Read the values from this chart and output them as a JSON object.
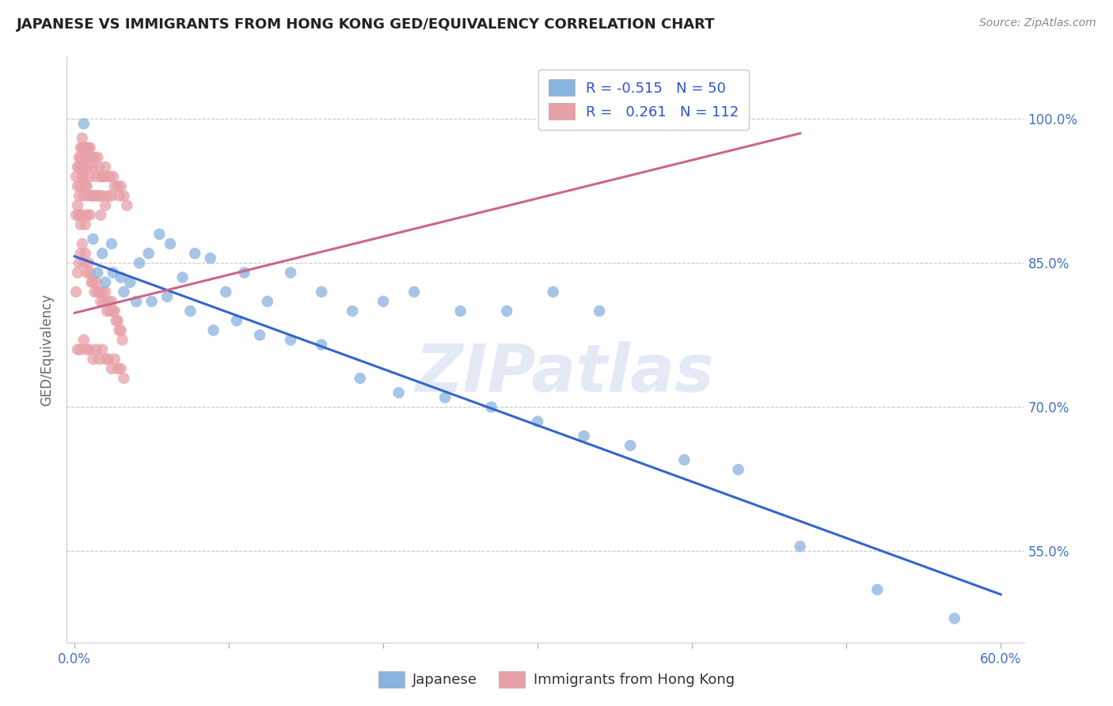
{
  "title": "JAPANESE VS IMMIGRANTS FROM HONG KONG GED/EQUIVALENCY CORRELATION CHART",
  "source": "Source: ZipAtlas.com",
  "ylabel": "GED/Equivalency",
  "ytick_vals": [
    1.0,
    0.85,
    0.7,
    0.55
  ],
  "ytick_labels": [
    "100.0%",
    "85.0%",
    "70.0%",
    "55.0%"
  ],
  "xlim": [
    -0.005,
    0.615
  ],
  "ylim": [
    0.455,
    1.065
  ],
  "watermark": "ZIPatlas",
  "legend1_label": "R = -0.515   N = 50",
  "legend2_label": "R =   0.261   N = 112",
  "legend_title1": "Japanese",
  "legend_title2": "Immigrants from Hong Kong",
  "blue_color": "#8ab4e0",
  "pink_color": "#e8a0a8",
  "blue_line_color": "#3366cc",
  "pink_line_color": "#cc6688",
  "background_color": "#ffffff",
  "grid_color": "#c8c8c8",
  "jp_line_x0": 0.0,
  "jp_line_y0": 0.857,
  "jp_line_x1": 0.6,
  "jp_line_y1": 0.505,
  "hk_line_x0": 0.0,
  "hk_line_y0": 0.798,
  "hk_line_x1": 0.47,
  "hk_line_y1": 0.985,
  "jp_x": [
    0.006,
    0.012,
    0.018,
    0.024,
    0.03,
    0.036,
    0.042,
    0.048,
    0.055,
    0.062,
    0.07,
    0.078,
    0.088,
    0.098,
    0.11,
    0.125,
    0.14,
    0.16,
    0.18,
    0.2,
    0.22,
    0.25,
    0.28,
    0.31,
    0.34,
    0.015,
    0.02,
    0.025,
    0.032,
    0.04,
    0.05,
    0.06,
    0.075,
    0.09,
    0.105,
    0.12,
    0.14,
    0.16,
    0.185,
    0.21,
    0.24,
    0.27,
    0.3,
    0.33,
    0.36,
    0.395,
    0.43,
    0.47,
    0.52,
    0.57
  ],
  "jp_y": [
    0.995,
    0.875,
    0.86,
    0.87,
    0.835,
    0.83,
    0.85,
    0.86,
    0.88,
    0.87,
    0.835,
    0.86,
    0.855,
    0.82,
    0.84,
    0.81,
    0.84,
    0.82,
    0.8,
    0.81,
    0.82,
    0.8,
    0.8,
    0.82,
    0.8,
    0.84,
    0.83,
    0.84,
    0.82,
    0.81,
    0.81,
    0.815,
    0.8,
    0.78,
    0.79,
    0.775,
    0.77,
    0.765,
    0.73,
    0.715,
    0.71,
    0.7,
    0.685,
    0.67,
    0.66,
    0.645,
    0.635,
    0.555,
    0.51,
    0.48
  ],
  "hk_x": [
    0.001,
    0.001,
    0.002,
    0.002,
    0.002,
    0.003,
    0.003,
    0.003,
    0.003,
    0.004,
    0.004,
    0.004,
    0.004,
    0.005,
    0.005,
    0.005,
    0.005,
    0.005,
    0.006,
    0.006,
    0.006,
    0.006,
    0.007,
    0.007,
    0.007,
    0.007,
    0.008,
    0.008,
    0.008,
    0.008,
    0.009,
    0.009,
    0.009,
    0.01,
    0.01,
    0.01,
    0.011,
    0.011,
    0.012,
    0.012,
    0.013,
    0.013,
    0.014,
    0.015,
    0.015,
    0.016,
    0.016,
    0.017,
    0.017,
    0.018,
    0.018,
    0.019,
    0.02,
    0.02,
    0.021,
    0.022,
    0.023,
    0.024,
    0.025,
    0.026,
    0.028,
    0.029,
    0.03,
    0.032,
    0.034,
    0.001,
    0.002,
    0.003,
    0.004,
    0.005,
    0.006,
    0.007,
    0.008,
    0.009,
    0.01,
    0.011,
    0.012,
    0.013,
    0.014,
    0.015,
    0.016,
    0.017,
    0.018,
    0.019,
    0.02,
    0.021,
    0.022,
    0.023,
    0.024,
    0.025,
    0.026,
    0.027,
    0.028,
    0.029,
    0.03,
    0.031,
    0.002,
    0.004,
    0.006,
    0.008,
    0.01,
    0.012,
    0.014,
    0.016,
    0.018,
    0.02,
    0.022,
    0.024,
    0.026,
    0.028,
    0.03,
    0.032
  ],
  "hk_y": [
    0.9,
    0.94,
    0.95,
    0.91,
    0.93,
    0.96,
    0.92,
    0.95,
    0.9,
    0.97,
    0.93,
    0.96,
    0.89,
    0.98,
    0.94,
    0.97,
    0.9,
    0.95,
    0.95,
    0.97,
    0.92,
    0.94,
    0.96,
    0.93,
    0.97,
    0.89,
    0.96,
    0.93,
    0.97,
    0.9,
    0.95,
    0.92,
    0.97,
    0.94,
    0.97,
    0.9,
    0.96,
    0.92,
    0.95,
    0.92,
    0.96,
    0.92,
    0.94,
    0.96,
    0.92,
    0.95,
    0.92,
    0.94,
    0.9,
    0.94,
    0.92,
    0.94,
    0.95,
    0.91,
    0.94,
    0.92,
    0.94,
    0.92,
    0.94,
    0.93,
    0.93,
    0.92,
    0.93,
    0.92,
    0.91,
    0.82,
    0.84,
    0.85,
    0.86,
    0.87,
    0.85,
    0.86,
    0.84,
    0.85,
    0.84,
    0.83,
    0.83,
    0.82,
    0.83,
    0.82,
    0.82,
    0.81,
    0.82,
    0.81,
    0.82,
    0.8,
    0.81,
    0.8,
    0.81,
    0.8,
    0.8,
    0.79,
    0.79,
    0.78,
    0.78,
    0.77,
    0.76,
    0.76,
    0.77,
    0.76,
    0.76,
    0.75,
    0.76,
    0.75,
    0.76,
    0.75,
    0.75,
    0.74,
    0.75,
    0.74,
    0.74,
    0.73
  ]
}
